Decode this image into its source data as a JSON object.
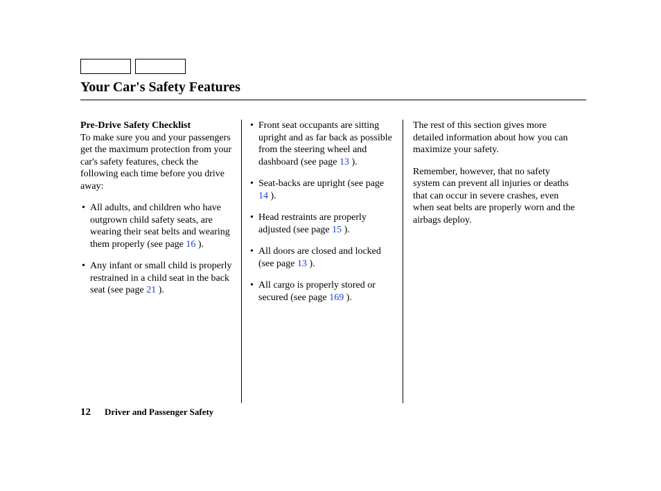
{
  "title": "Your Car's Safety Features",
  "col1": {
    "subhead": "Pre-Drive Safety Checklist",
    "intro": "To make sure you and your passengers get the maximum protection from your car's safety features, check the following each time before you drive away:",
    "items": [
      {
        "pre": "All adults, and children who have outgrown child safety seats, are wearing their seat belts and wearing them properly (see page ",
        "ref": "16",
        "post": " )."
      },
      {
        "pre": "Any infant or small child is properly restrained in a child seat in the back seat (see page ",
        "ref": "21",
        "post": " )."
      }
    ]
  },
  "col2": {
    "items": [
      {
        "pre": "Front seat occupants are sitting upright and as far back as possible from the steering wheel and dashboard (see page ",
        "ref": "13",
        "post": " )."
      },
      {
        "pre": "Seat-backs are upright (see page ",
        "ref": "14",
        "post": " )."
      },
      {
        "pre": "Head restraints are properly adjusted (see page ",
        "ref": "15",
        "post": " )."
      },
      {
        "pre": "All doors are closed and locked (see page ",
        "ref": "13",
        "post": " )."
      },
      {
        "pre": "All cargo is properly stored or secured (see page ",
        "ref": "169",
        "post": " )."
      }
    ]
  },
  "col3": {
    "p1": "The rest of this section gives more detailed information about how you can maximize your safety.",
    "p2": "Remember, however, that no safety system can prevent all injuries or deaths that can occur in severe crashes, even when seat belts are properly worn and the airbags deploy."
  },
  "footer": {
    "page_number": "12",
    "section": "Driver and Passenger Safety"
  },
  "colors": {
    "link": "#1a3fd6",
    "text": "#000000",
    "bg": "#ffffff"
  }
}
